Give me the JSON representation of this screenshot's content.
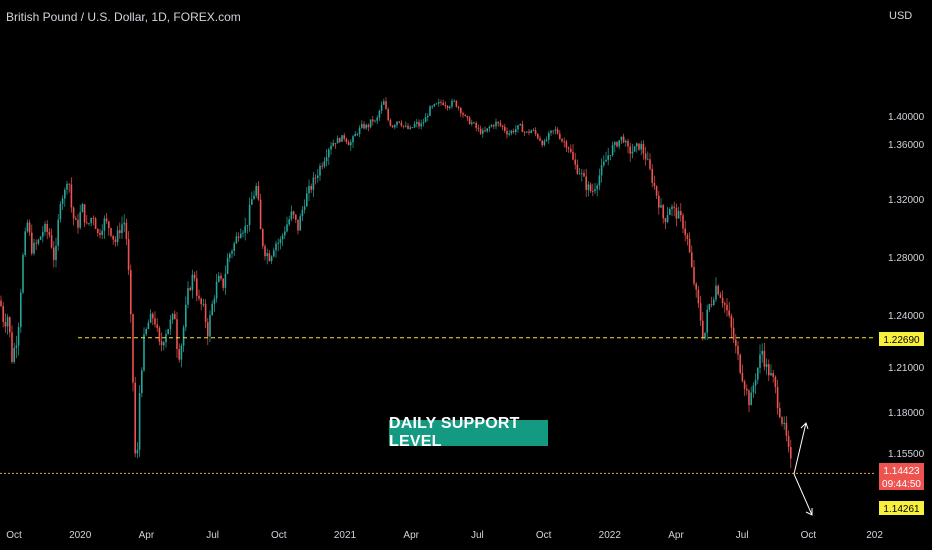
{
  "header": {
    "title": "British Pound / U.S. Dollar, 1D, FOREX.com",
    "currency": "USD"
  },
  "colors": {
    "background": "#000000",
    "up": "#26a69a",
    "down": "#ef5350",
    "level_line": "#f7e23d",
    "support_line": "#e8a243",
    "badge_yellow": "#f7f13d",
    "badge_red": "#ef5350",
    "annotation_bg": "#139a80",
    "arrow": "#ffffff"
  },
  "annotation": {
    "text": "DAILY SUPPORT LEVEL"
  },
  "price_badges": {
    "resistance": "1.22690",
    "current": "1.14423",
    "countdown": "09:44:50",
    "support": "1.14261"
  },
  "chart_data": {
    "type": "candlestick",
    "title": "British Pound / U.S. Dollar, 1D, FOREX.com",
    "ylabel": "USD",
    "y_ticks": [
      "1.40000",
      "1.36000",
      "1.32000",
      "1.28000",
      "1.24000",
      "1.21000",
      "1.18000",
      "1.15500"
    ],
    "x_ticks": [
      "Oct",
      "2020",
      "Apr",
      "Jul",
      "Oct",
      "2021",
      "Apr",
      "Jul",
      "Oct",
      "2022",
      "Apr",
      "Jul",
      "Oct",
      "202"
    ],
    "grid": false,
    "horizontal_levels": [
      {
        "value": 1.2269,
        "style": "dashed",
        "color": "#f7e23d"
      },
      {
        "value": 1.14261,
        "style": "dashed",
        "color": "#e8a243"
      }
    ],
    "last_price": 1.14423,
    "path": [
      [
        0,
        1.25
      ],
      [
        4,
        1.235
      ],
      [
        8,
        1.24
      ],
      [
        12,
        1.215
      ],
      [
        18,
        1.23
      ],
      [
        23,
        1.28
      ],
      [
        27,
        1.305
      ],
      [
        32,
        1.285
      ],
      [
        38,
        1.29
      ],
      [
        44,
        1.3
      ],
      [
        50,
        1.295
      ],
      [
        55,
        1.275
      ],
      [
        60,
        1.32
      ],
      [
        65,
        1.325
      ],
      [
        68,
        1.34
      ],
      [
        72,
        1.31
      ],
      [
        77,
        1.3
      ],
      [
        82,
        1.315
      ],
      [
        87,
        1.3
      ],
      [
        93,
        1.31
      ],
      [
        98,
        1.295
      ],
      [
        104,
        1.305
      ],
      [
        110,
        1.3
      ],
      [
        115,
        1.29
      ],
      [
        120,
        1.3
      ],
      [
        124,
        1.305
      ],
      [
        127,
        1.29
      ],
      [
        130,
        1.25
      ],
      [
        133,
        1.2
      ],
      [
        135,
        1.155
      ],
      [
        137,
        1.148
      ],
      [
        140,
        1.2
      ],
      [
        144,
        1.225
      ],
      [
        148,
        1.235
      ],
      [
        154,
        1.24
      ],
      [
        160,
        1.22
      ],
      [
        165,
        1.23
      ],
      [
        170,
        1.235
      ],
      [
        175,
        1.24
      ],
      [
        178,
        1.215
      ],
      [
        182,
        1.225
      ],
      [
        188,
        1.255
      ],
      [
        194,
        1.27
      ],
      [
        198,
        1.25
      ],
      [
        203,
        1.245
      ],
      [
        208,
        1.23
      ],
      [
        213,
        1.25
      ],
      [
        218,
        1.265
      ],
      [
        223,
        1.26
      ],
      [
        228,
        1.28
      ],
      [
        235,
        1.29
      ],
      [
        240,
        1.3
      ],
      [
        246,
        1.3
      ],
      [
        252,
        1.32
      ],
      [
        257,
        1.33
      ],
      [
        260,
        1.3
      ],
      [
        264,
        1.285
      ],
      [
        270,
        1.28
      ],
      [
        275,
        1.29
      ],
      [
        280,
        1.29
      ],
      [
        285,
        1.3
      ],
      [
        292,
        1.31
      ],
      [
        298,
        1.3
      ],
      [
        305,
        1.32
      ],
      [
        312,
        1.33
      ],
      [
        318,
        1.34
      ],
      [
        324,
        1.35
      ],
      [
        330,
        1.36
      ],
      [
        337,
        1.365
      ],
      [
        344,
        1.37
      ],
      [
        350,
        1.36
      ],
      [
        356,
        1.375
      ],
      [
        362,
        1.385
      ],
      [
        368,
        1.385
      ],
      [
        372,
        1.395
      ],
      [
        376,
        1.39
      ],
      [
        380,
        1.41
      ],
      [
        384,
        1.42
      ],
      [
        388,
        1.395
      ],
      [
        392,
        1.385
      ],
      [
        398,
        1.395
      ],
      [
        404,
        1.385
      ],
      [
        410,
        1.38
      ],
      [
        416,
        1.39
      ],
      [
        420,
        1.385
      ],
      [
        425,
        1.395
      ],
      [
        430,
        1.41
      ],
      [
        436,
        1.415
      ],
      [
        442,
        1.42
      ],
      [
        448,
        1.415
      ],
      [
        454,
        1.42
      ],
      [
        460,
        1.41
      ],
      [
        466,
        1.395
      ],
      [
        472,
        1.39
      ],
      [
        478,
        1.38
      ],
      [
        484,
        1.375
      ],
      [
        490,
        1.385
      ],
      [
        496,
        1.39
      ],
      [
        502,
        1.385
      ],
      [
        508,
        1.375
      ],
      [
        514,
        1.38
      ],
      [
        520,
        1.385
      ],
      [
        526,
        1.375
      ],
      [
        532,
        1.38
      ],
      [
        538,
        1.37
      ],
      [
        544,
        1.36
      ],
      [
        550,
        1.375
      ],
      [
        556,
        1.38
      ],
      [
        562,
        1.365
      ],
      [
        568,
        1.36
      ],
      [
        574,
        1.345
      ],
      [
        580,
        1.34
      ],
      [
        586,
        1.33
      ],
      [
        592,
        1.325
      ],
      [
        598,
        1.335
      ],
      [
        604,
        1.345
      ],
      [
        610,
        1.355
      ],
      [
        616,
        1.36
      ],
      [
        622,
        1.37
      ],
      [
        628,
        1.355
      ],
      [
        634,
        1.355
      ],
      [
        640,
        1.36
      ],
      [
        646,
        1.35
      ],
      [
        652,
        1.335
      ],
      [
        658,
        1.32
      ],
      [
        664,
        1.305
      ],
      [
        670,
        1.315
      ],
      [
        676,
        1.31
      ],
      [
        682,
        1.305
      ],
      [
        688,
        1.29
      ],
      [
        692,
        1.27
      ],
      [
        696,
        1.255
      ],
      [
        700,
        1.24
      ],
      [
        704,
        1.225
      ],
      [
        708,
        1.245
      ],
      [
        712,
        1.25
      ],
      [
        716,
        1.26
      ],
      [
        720,
        1.255
      ],
      [
        726,
        1.245
      ],
      [
        730,
        1.235
      ],
      [
        734,
        1.225
      ],
      [
        738,
        1.215
      ],
      [
        742,
        1.205
      ],
      [
        746,
        1.195
      ],
      [
        750,
        1.185
      ],
      [
        754,
        1.2
      ],
      [
        758,
        1.21
      ],
      [
        762,
        1.22
      ],
      [
        766,
        1.21
      ],
      [
        770,
        1.205
      ],
      [
        774,
        1.2
      ],
      [
        778,
        1.185
      ],
      [
        782,
        1.175
      ],
      [
        786,
        1.165
      ],
      [
        790,
        1.15
      ],
      [
        793,
        1.143
      ]
    ]
  }
}
